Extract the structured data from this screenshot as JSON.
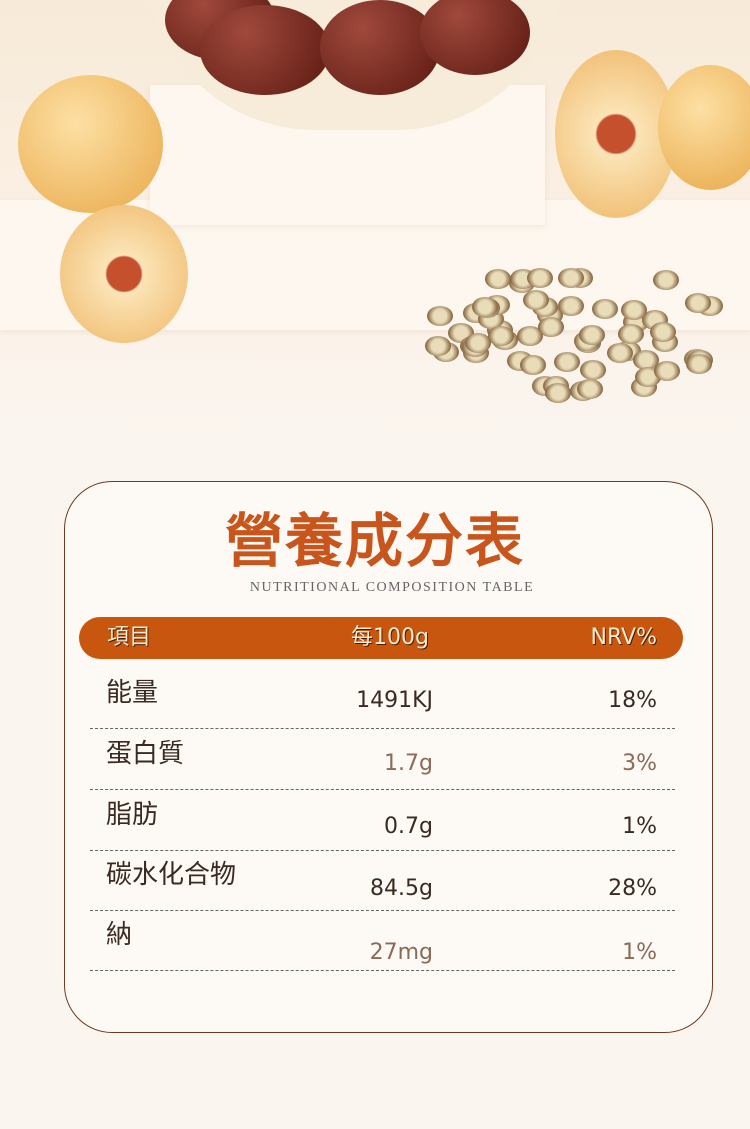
{
  "title": "營養成分表",
  "subtitle": "NUTRITIONAL COMPOSITION TABLE",
  "header": {
    "item": "項目",
    "per100g": "每100g",
    "nrv": "NRV%"
  },
  "rows": [
    {
      "name": "能量",
      "value": "1491KJ",
      "nrv": "18%"
    },
    {
      "name": "蛋白質",
      "value": "1.7g",
      "nrv": "3%"
    },
    {
      "name": "脂肪",
      "value": "0.7g",
      "nrv": "1%"
    },
    {
      "name": "碳水化合物",
      "value": "84.5g",
      "nrv": "28%"
    },
    {
      "name": "納",
      "value": "27mg",
      "nrv": "1%"
    }
  ],
  "colors": {
    "accent": "#c8560e",
    "title": "#c8561c",
    "border": "#6b3a22"
  }
}
